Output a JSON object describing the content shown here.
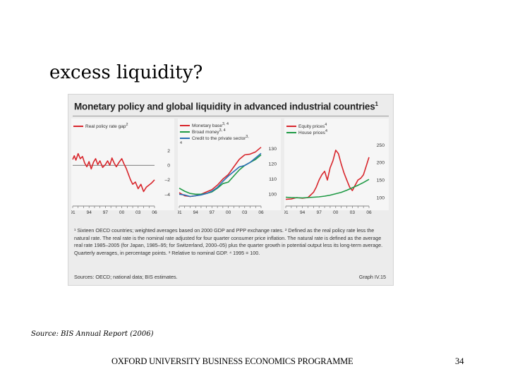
{
  "slide": {
    "title": "excess liquidity?",
    "source": "Source: BIS Annual Report (2006)",
    "footer": "OXFORD UNIVERSITY BUSINESS ECONOMICS PROGRAMME",
    "page_number": "34"
  },
  "figure": {
    "title": "Monetary policy and global liquidity in advanced industrial countries",
    "title_note": "1",
    "footnotes": "¹ Sixteen OECD countries; weighted averages based on 2000 GDP and PPP exchange rates.   ² Defined as the real policy rate less the natural rate. The real rate is the nominal rate adjusted for four quarter consumer price inflation. The natural rate is defined as the average real rate 1985–2005 (for Japan, 1985–95; for Switzerland, 2000–05) plus the quarter growth in potential output less its long-term average. Quarterly averages, in percentage points.   ³ Relative to nominal GDP.   ⁴ 1995 = 100.",
    "sources": "Sources: OECD; national data; BIS estimates.",
    "graph_label": "Graph IV.15"
  },
  "colors": {
    "red": "#d8262c",
    "green": "#1f9a45",
    "blue": "#2a6fb5"
  },
  "chart_data": [
    {
      "type": "line",
      "x_tick_labels": [
        "91",
        "94",
        "97",
        "00",
        "03",
        "06"
      ],
      "xlim": [
        1991,
        2006
      ],
      "ylim": [
        -5,
        3.5
      ],
      "y_ticks": [
        2,
        0,
        -2,
        -4
      ],
      "y_tick_labels": [
        "2",
        "0",
        "–2",
        "–4"
      ],
      "grid": "horizontal at 0",
      "series": [
        {
          "name": "Real policy rate gap",
          "name_note": "2",
          "color": "#d8262c",
          "x": [
            1991,
            1991.3,
            1991.6,
            1992,
            1992.4,
            1992.8,
            1993.2,
            1993.6,
            1994,
            1994.4,
            1994.8,
            1995.2,
            1995.6,
            1996,
            1996.5,
            1997,
            1997.4,
            1997.8,
            1998.2,
            1998.6,
            1999,
            1999.5,
            2000,
            2000.4,
            2000.8,
            2001.2,
            2001.6,
            2002,
            2002.5,
            2003,
            2003.5,
            2004,
            2004.5,
            2005,
            2005.5,
            2006
          ],
          "values": [
            0.8,
            1.3,
            0.7,
            1.6,
            0.9,
            1.2,
            0.3,
            -0.2,
            0.5,
            -0.5,
            0.4,
            0.9,
            0.1,
            0.6,
            -0.3,
            0.1,
            0.6,
            0.0,
            1.0,
            0.3,
            -0.2,
            0.4,
            0.9,
            0.2,
            -0.4,
            -1.2,
            -2.0,
            -2.6,
            -2.3,
            -3.2,
            -2.6,
            -3.6,
            -3.0,
            -2.7,
            -2.4,
            -2.0
          ]
        }
      ]
    },
    {
      "type": "line",
      "x_tick_labels": [
        "91",
        "94",
        "97",
        "00",
        "03",
        "06"
      ],
      "xlim": [
        1991,
        2006
      ],
      "ylim": [
        95,
        136
      ],
      "y_ticks": [
        130,
        120,
        110,
        100
      ],
      "y_tick_labels": [
        "130",
        "120",
        "110",
        "100"
      ],
      "grid": "none",
      "series": [
        {
          "name": "Monetary base",
          "name_note": "3, 4",
          "color": "#d8262c",
          "x": [
            1991,
            1992,
            1993,
            1994,
            1995,
            1996,
            1997,
            1998,
            1999,
            2000,
            2001,
            2002,
            2003,
            2004,
            2005,
            2006
          ],
          "values": [
            101,
            99,
            98.5,
            99,
            100,
            101.5,
            103,
            106,
            110,
            113,
            118,
            123,
            126,
            126.5,
            128,
            131
          ]
        },
        {
          "name": "Broad money",
          "name_note": "3, 4",
          "color": "#1f9a45",
          "x": [
            1991,
            1992,
            1993,
            1994,
            1995,
            1996,
            1997,
            1998,
            1999,
            2000,
            2001,
            2002,
            2003,
            2004,
            2005,
            2006
          ],
          "values": [
            104,
            102,
            100.5,
            100,
            100,
            100.5,
            101.5,
            104,
            107,
            108,
            112,
            116,
            119,
            121,
            123,
            126
          ]
        },
        {
          "name": "Credit to the private sector",
          "name_note": "3, 4",
          "color": "#2a6fb5",
          "x": [
            1991,
            1992,
            1993,
            1994,
            1995,
            1996,
            1997,
            1998,
            1999,
            2000,
            2001,
            2002,
            2003,
            2004,
            2005,
            2006
          ],
          "values": [
            100,
            99.5,
            98.5,
            99,
            99.5,
            100.5,
            102,
            104.5,
            108.5,
            112,
            115,
            118,
            119,
            121,
            124,
            127
          ]
        }
      ]
    },
    {
      "type": "line",
      "x_tick_labels": [
        "91",
        "94",
        "97",
        "00",
        "03",
        "06"
      ],
      "xlim": [
        1991,
        2006
      ],
      "ylim": [
        88,
        265
      ],
      "y_ticks": [
        250,
        200,
        150,
        100
      ],
      "y_tick_labels": [
        "250",
        "200",
        "150",
        "100"
      ],
      "grid": "none",
      "series": [
        {
          "name": "Equity prices",
          "name_note": "4",
          "color": "#d8262c",
          "x": [
            1991,
            1992,
            1993,
            1994,
            1995,
            1996,
            1996.5,
            1997,
            1997.5,
            1998,
            1998.5,
            1999,
            1999.5,
            2000,
            2000.5,
            2001,
            2001.5,
            2002,
            2002.5,
            2003,
            2003.5,
            2004,
            2004.5,
            2005,
            2005.5,
            2006
          ],
          "values": [
            95,
            96,
            100,
            98,
            100,
            115,
            130,
            150,
            165,
            175,
            150,
            185,
            205,
            235,
            225,
            195,
            170,
            150,
            130,
            120,
            135,
            150,
            155,
            165,
            190,
            215
          ]
        },
        {
          "name": "House prices",
          "name_note": "4",
          "color": "#1f9a45",
          "x": [
            1991,
            1992,
            1993,
            1994,
            1995,
            1996,
            1997,
            1998,
            1999,
            2000,
            2001,
            2002,
            2003,
            2004,
            2005,
            2006
          ],
          "values": [
            101,
            100,
            99.5,
            99,
            100,
            101,
            102,
            104,
            107,
            111,
            115,
            121,
            128,
            135,
            143,
            152
          ]
        }
      ]
    }
  ]
}
